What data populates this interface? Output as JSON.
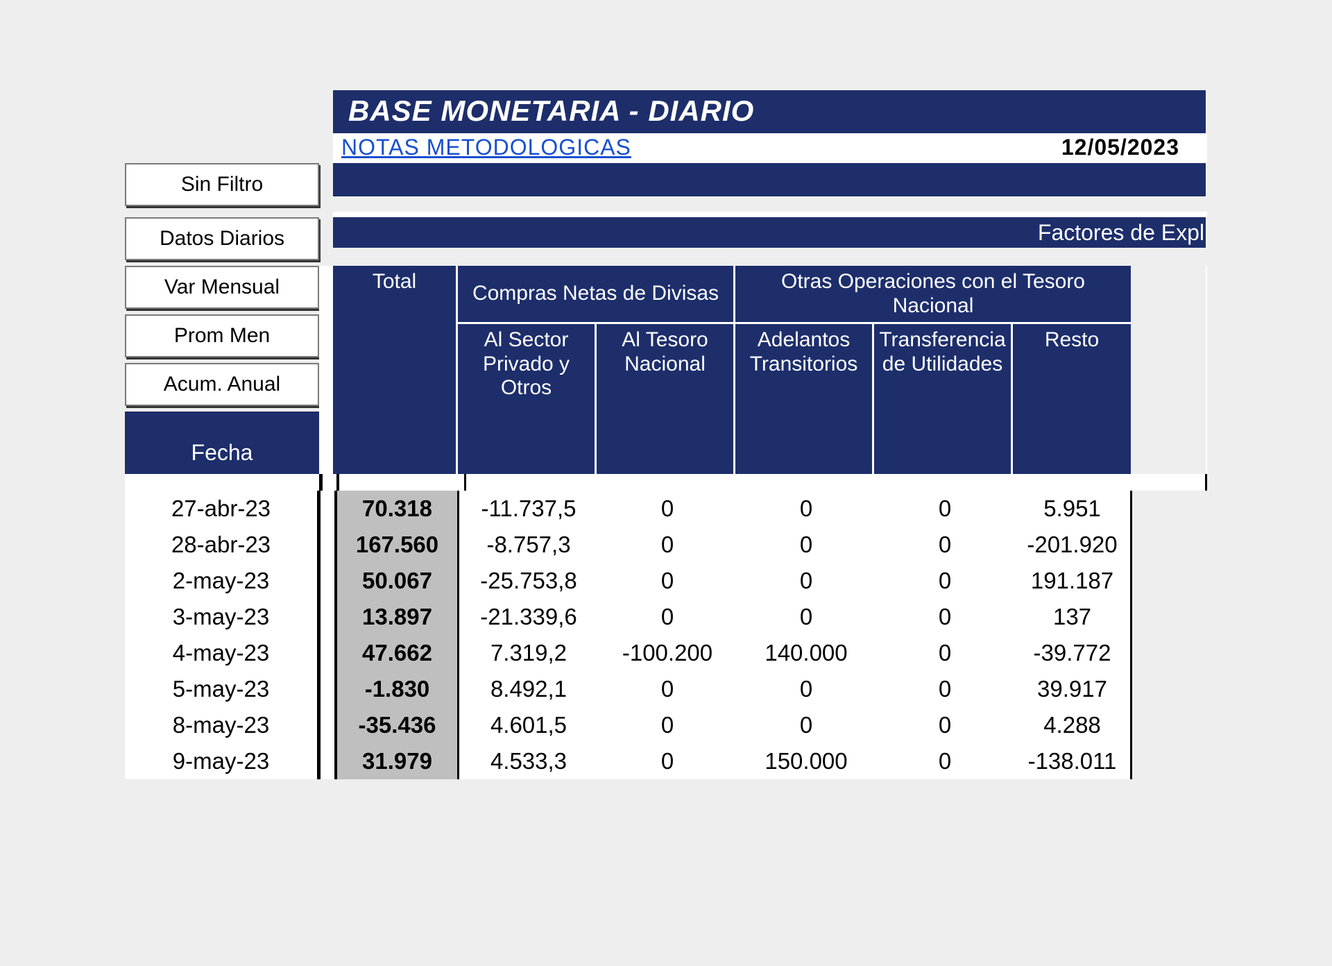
{
  "title": "BASE MONETARIA - DIARIO",
  "link_label": "NOTAS METODOLOGICAS",
  "report_date": "12/05/2023",
  "factores_label": "Factores de Expl",
  "filters": {
    "sin_filtro": "Sin Filtro",
    "datos_diarios": "Datos Diarios",
    "var_mensual": "Var Mensual",
    "prom_men": "Prom Men",
    "acum_anual": "Acum. Anual"
  },
  "headers": {
    "fecha": "Fecha",
    "total": "Total",
    "compras_netas": "Compras Netas de Divisas",
    "sector_privado": "Al Sector Privado y Otros",
    "tesoro_nacional": "Al Tesoro Nacional",
    "otras_operaciones": "Otras Operaciones con el Tesoro Nacional",
    "adelantos": "Adelantos Transitorios",
    "transferencia": "Transferencia de Utilidades",
    "resto": "Resto"
  },
  "rows": [
    {
      "fecha": "27-abr-23",
      "total": "70.318",
      "c1": "-11.737,5",
      "c2": "0",
      "c3": "0",
      "c4": "0",
      "c5": "5.951"
    },
    {
      "fecha": "28-abr-23",
      "total": "167.560",
      "c1": "-8.757,3",
      "c2": "0",
      "c3": "0",
      "c4": "0",
      "c5": "-201.920"
    },
    {
      "fecha": "2-may-23",
      "total": "50.067",
      "c1": "-25.753,8",
      "c2": "0",
      "c3": "0",
      "c4": "0",
      "c5": "191.187"
    },
    {
      "fecha": "3-may-23",
      "total": "13.897",
      "c1": "-21.339,6",
      "c2": "0",
      "c3": "0",
      "c4": "0",
      "c5": "137"
    },
    {
      "fecha": "4-may-23",
      "total": "47.662",
      "c1": "7.319,2",
      "c2": "-100.200",
      "c3": "140.000",
      "c4": "0",
      "c5": "-39.772"
    },
    {
      "fecha": "5-may-23",
      "total": "-1.830",
      "c1": "8.492,1",
      "c2": "0",
      "c3": "0",
      "c4": "0",
      "c5": "39.917"
    },
    {
      "fecha": "8-may-23",
      "total": "-35.436",
      "c1": "4.601,5",
      "c2": "0",
      "c3": "0",
      "c4": "0",
      "c5": "4.288"
    },
    {
      "fecha": "9-may-23",
      "total": "31.979",
      "c1": "4.533,3",
      "c2": "0",
      "c3": "150.000",
      "c4": "0",
      "c5": "-138.011"
    }
  ],
  "colors": {
    "navy": "#1d2e6b",
    "white": "#ffffff",
    "page_bg": "#eeeeee",
    "total_bg": "#bfbfbf",
    "link": "#184fd1",
    "text": "#000000"
  }
}
